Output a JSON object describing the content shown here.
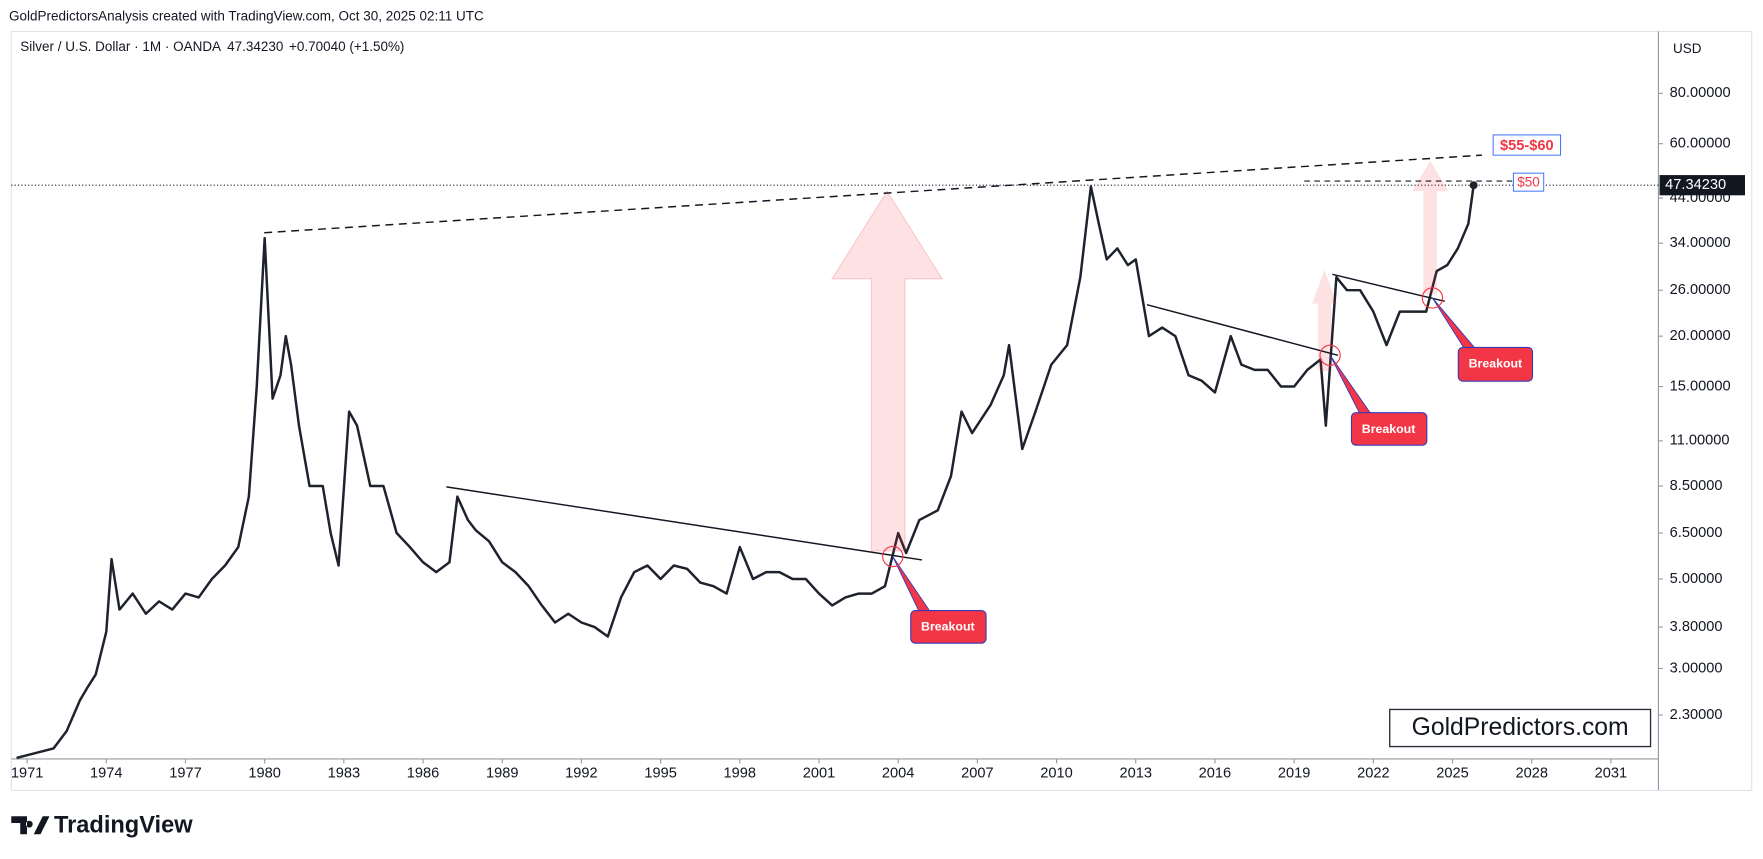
{
  "header": "GoldPredictorsAnalysis created with TradingView.com, Oct 30, 2025 02:11 UTC",
  "chart_data": {
    "type": "line",
    "log_scale": true,
    "grid": false,
    "symbol": "Silver / U.S. Dollar · 1M · OANDA",
    "symbol_price": "47.34230",
    "symbol_change": "+0.70040 (+1.50%)",
    "currency": "USD",
    "price_label": "47.34230",
    "annotations": [
      "Breakout",
      "Breakout",
      "Breakout",
      "$55-$60",
      "$50"
    ],
    "watermark": "GoldPredictors.com",
    "brand": "TradingView",
    "xlim": [
      1970.4,
      2032.8
    ],
    "ylim": [
      1.79,
      112.4
    ],
    "xticks": [
      1971,
      1974,
      1977,
      1980,
      1983,
      1986,
      1989,
      1992,
      1995,
      1998,
      2001,
      2004,
      2007,
      2010,
      2013,
      2016,
      2019,
      2022,
      2025,
      2028,
      2031
    ],
    "yticks": [
      {
        "value": 2.3,
        "label": "2.30000"
      },
      {
        "value": 3,
        "label": "3.00000"
      },
      {
        "value": 3.8,
        "label": "3.80000"
      },
      {
        "value": 5,
        "label": "5.00000"
      },
      {
        "value": 6.5,
        "label": "6.50000"
      },
      {
        "value": 8.5,
        "label": "8.50000"
      },
      {
        "value": 11,
        "label": "11.00000"
      },
      {
        "value": 15,
        "label": "15.00000"
      },
      {
        "value": 20,
        "label": "20.00000"
      },
      {
        "value": 26,
        "label": "26.00000"
      },
      {
        "value": 34,
        "label": "34.00000"
      },
      {
        "value": 44,
        "label": "44.00000"
      },
      {
        "value": 60,
        "label": "60.00000"
      },
      {
        "value": 80,
        "label": "80.00000"
      }
    ],
    "series": [
      {
        "name": "Silver / U.S. Dollar",
        "color": "#1e222d",
        "x": [
          1970.6,
          1972.0,
          1972.5,
          1973.0,
          1973.3,
          1973.6,
          1974.0,
          1974.2,
          1974.5,
          1975.0,
          1975.5,
          1976.0,
          1976.5,
          1977.0,
          1977.5,
          1978.0,
          1978.5,
          1979.0,
          1979.4,
          1979.7,
          1980.0,
          1980.3,
          1980.6,
          1980.8,
          1981.0,
          1981.3,
          1981.7,
          1982.2,
          1982.5,
          1982.8,
          1983.2,
          1983.5,
          1984.0,
          1984.5,
          1985.0,
          1985.5,
          1986.0,
          1986.5,
          1987.0,
          1987.3,
          1987.7,
          1988.0,
          1988.5,
          1989.0,
          1989.5,
          1990.0,
          1990.5,
          1991.0,
          1991.5,
          1992.0,
          1992.5,
          1993.0,
          1993.5,
          1994.0,
          1994.5,
          1995.0,
          1995.5,
          1996.0,
          1996.5,
          1997.0,
          1997.5,
          1998.0,
          1998.5,
          1999.0,
          1999.5,
          2000.0,
          2000.5,
          2001.0,
          2001.5,
          2002.0,
          2002.5,
          2003.0,
          2003.5,
          2004.0,
          2004.3,
          2004.8,
          2005.5,
          2006.0,
          2006.4,
          2006.8,
          2007.5,
          2008.0,
          2008.2,
          2008.7,
          2009.2,
          2009.8,
          2010.4,
          2010.9,
          2011.3,
          2011.6,
          2011.9,
          2012.3,
          2012.7,
          2013.0,
          2013.5,
          2014.0,
          2014.5,
          2015.0,
          2015.5,
          2016.0,
          2016.6,
          2017.0,
          2017.5,
          2018.0,
          2018.5,
          2019.0,
          2019.5,
          2020.0,
          2020.2,
          2020.6,
          2021.0,
          2021.5,
          2022.0,
          2022.5,
          2023.0,
          2023.5,
          2024.0,
          2024.4,
          2024.8,
          2025.2,
          2025.6,
          2025.8
        ],
        "values": [
          1.8,
          1.9,
          2.1,
          2.5,
          2.7,
          2.9,
          3.7,
          5.6,
          4.2,
          4.6,
          4.1,
          4.4,
          4.2,
          4.6,
          4.5,
          5.0,
          5.4,
          6.0,
          8.0,
          15,
          35,
          14,
          16,
          20,
          17,
          12,
          8.5,
          8.5,
          6.5,
          5.4,
          13,
          12,
          8.5,
          8.5,
          6.5,
          6.0,
          5.5,
          5.2,
          5.5,
          8.0,
          7.0,
          6.6,
          6.2,
          5.5,
          5.2,
          4.8,
          4.3,
          3.9,
          4.1,
          3.9,
          3.8,
          3.6,
          4.5,
          5.2,
          5.4,
          5.0,
          5.4,
          5.3,
          4.9,
          4.8,
          4.6,
          6.0,
          5.0,
          5.2,
          5.2,
          5.0,
          5.0,
          4.6,
          4.3,
          4.5,
          4.6,
          4.6,
          4.8,
          6.5,
          5.8,
          7.0,
          7.4,
          9.0,
          13,
          11.5,
          13.5,
          16,
          19,
          10.5,
          13,
          17,
          19,
          28,
          47,
          38,
          31,
          33,
          30,
          31,
          20,
          21,
          20,
          16,
          15.5,
          14.5,
          20,
          17,
          16.5,
          16.5,
          15,
          15,
          16.5,
          17.5,
          12,
          28,
          26,
          26,
          23,
          19,
          23,
          23,
          23,
          29,
          30,
          33,
          38,
          47.3423
        ]
      }
    ]
  }
}
